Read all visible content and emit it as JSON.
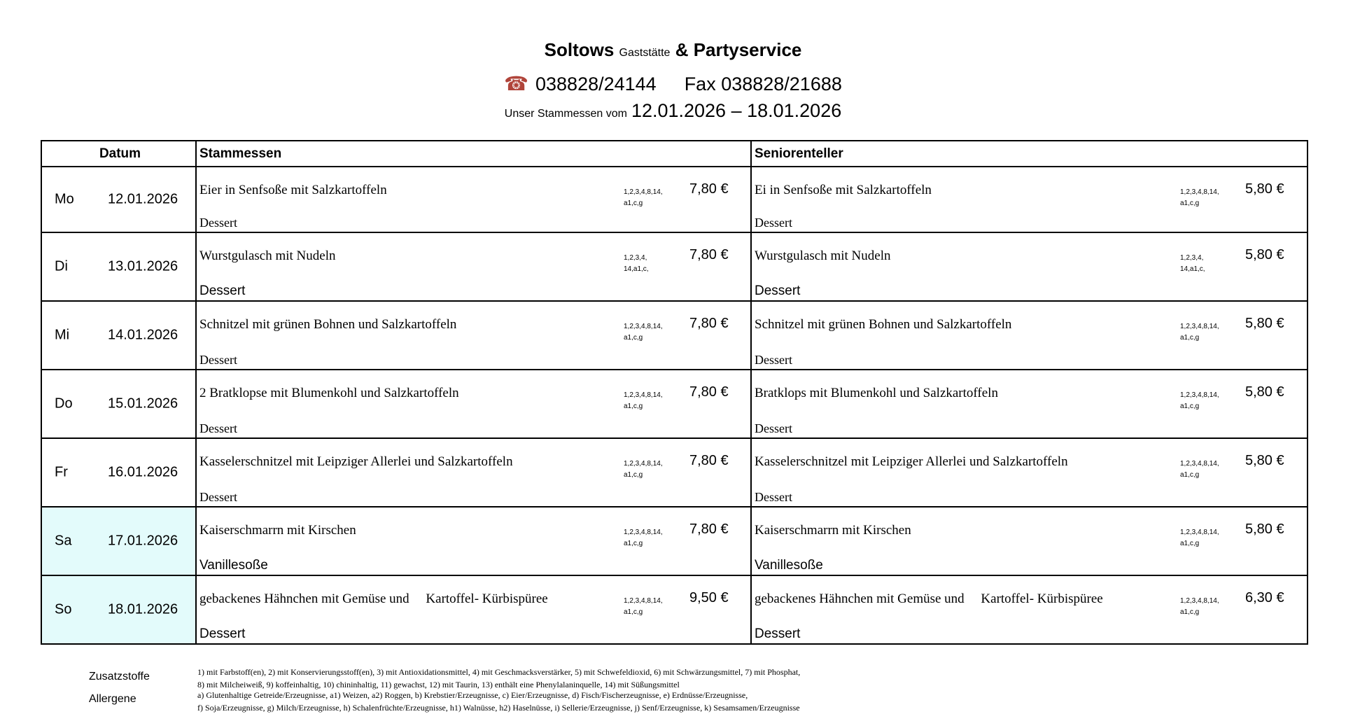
{
  "header": {
    "name": "Soltows",
    "name_small": "Gaststätte",
    "name_rest": "& Partyservice",
    "phone_icon": "telephone-icon",
    "phone": "038828/24144",
    "fax": "Fax 038828/21688",
    "week_label": "Unser Stammessen vom",
    "week_range": "12.01.2026 – 18.01.2026"
  },
  "table": {
    "headers": [
      "Datum",
      "Stammessen",
      "Seniorenteller"
    ],
    "rows": [
      {
        "day": "Mo",
        "date": "12.01.2026",
        "weekend": false,
        "main": {
          "dish": "Eier in Senfsoße mit Salzkartoffeln",
          "codes": [
            "1,2,3,4,8,14,",
            "a1,c,g"
          ],
          "price": "7,80 €",
          "extra": "Dessert",
          "extra_sans": false
        },
        "senior": {
          "dish": "Ei in Senfsoße mit Salzkartoffeln",
          "codes": [
            "1,2,3,4,8,14,",
            "a1,c,g"
          ],
          "price": "5,80 €",
          "extra": "Dessert",
          "extra_sans": false
        }
      },
      {
        "day": "Di",
        "date": "13.01.2026",
        "weekend": false,
        "main": {
          "dish": "Wurstgulasch mit Nudeln",
          "codes": [
            "1,2,3,4,",
            "14,a1,c,"
          ],
          "price": "7,80 €",
          "extra": "Dessert",
          "extra_sans": true
        },
        "senior": {
          "dish": "Wurstgulasch mit Nudeln",
          "codes": [
            "1,2,3,4,",
            "14,a1,c,"
          ],
          "price": "5,80 €",
          "extra": "Dessert",
          "extra_sans": true
        }
      },
      {
        "day": "Mi",
        "date": "14.01.2026",
        "weekend": false,
        "main": {
          "dish": "Schnitzel mit grünen Bohnen und Salzkartoffeln",
          "codes": [
            "1,2,3,4,8,14,",
            "a1,c,g"
          ],
          "price": "7,80 €",
          "extra": "Dessert",
          "extra_sans": false
        },
        "senior": {
          "dish": "Schnitzel mit grünen Bohnen und Salzkartoffeln",
          "codes": [
            "1,2,3,4,8,14,",
            "a1,c,g"
          ],
          "price": "5,80 €",
          "extra": "Dessert",
          "extra_sans": false
        }
      },
      {
        "day": "Do",
        "date": "15.01.2026",
        "weekend": false,
        "main": {
          "dish": "2 Bratklopse mit Blumenkohl und Salzkartoffeln",
          "codes": [
            "1,2,3,4,8,14,",
            "a1,c,g"
          ],
          "price": "7,80 €",
          "extra": "Dessert",
          "extra_sans": false
        },
        "senior": {
          "dish": "Bratklops mit Blumenkohl und Salzkartoffeln",
          "codes": [
            "1,2,3,4,8,14,",
            "a1,c,g"
          ],
          "price": "5,80 €",
          "extra": "Dessert",
          "extra_sans": false
        }
      },
      {
        "day": "Fr",
        "date": "16.01.2026",
        "weekend": false,
        "main": {
          "dish": "Kasselerschnitzel mit Leipziger Allerlei und Salzkartoffeln",
          "codes": [
            "1,2,3,4,8,14,",
            "a1,c,g"
          ],
          "price": "7,80 €",
          "extra": "Dessert",
          "extra_sans": false
        },
        "senior": {
          "dish": "Kasselerschnitzel mit Leipziger Allerlei und Salzkartoffeln",
          "codes": [
            "1,2,3,4,8,14,",
            "a1,c,g"
          ],
          "price": "5,80 €",
          "extra": "Dessert",
          "extra_sans": false
        }
      },
      {
        "day": "Sa",
        "date": "17.01.2026",
        "weekend": true,
        "main": {
          "dish": "Kaiserschmarrn mit Kirschen",
          "codes": [
            "1,2,3,4,8,14,",
            "a1,c,g"
          ],
          "price": "7,80 €",
          "extra": "Vanillesoße",
          "extra_sans": true
        },
        "senior": {
          "dish": "Kaiserschmarrn mit Kirschen",
          "codes": [
            "1,2,3,4,8,14,",
            "a1,c,g"
          ],
          "price": "5,80 €",
          "extra": "Vanillesoße",
          "extra_sans": true
        }
      },
      {
        "day": "So",
        "date": "18.01.2026",
        "weekend": true,
        "main": {
          "dish": "gebackenes Hähnchen mit Gemüse und     Kartoffel- Kürbispüree",
          "codes": [
            "1,2,3,4,8,14,",
            "a1,c,g"
          ],
          "price": "9,50 €",
          "extra": "Dessert",
          "extra_sans": true
        },
        "senior": {
          "dish": "gebackenes Hähnchen mit Gemüse und     Kartoffel- Kürbispüree",
          "codes": [
            "1,2,3,4,8,14,",
            "a1,c,g"
          ],
          "price": "6,30 €",
          "extra": "Dessert",
          "extra_sans": true
        }
      }
    ]
  },
  "colors": {
    "weekend_bg": "#e3fbfb",
    "phone_icon": "#b0443a"
  },
  "footer": {
    "additives_label": "Zusatzstoffe",
    "additives_lines": [
      "1) mit Farbstoff(en), 2) mit Konservierungsstoff(en), 3) mit Antioxidationsmittel, 4) mit Geschmacksverstärker, 5) mit Schwefeldioxid, 6) mit Schwärzungsmittel, 7) mit Phosphat,",
      "8) mit Milcheiweiß, 9) koffeinhaltig, 10) chininhaltig, 11) gewachst, 12) mit Taurin, 13) enthält eine Phenylalaninquelle, 14) mit Süßungsmittel"
    ],
    "allergens_label": "Allergene",
    "allergens_lines": [
      "a) Glutenhaltige Getreide/Erzeugnisse, a1) Weizen, a2) Roggen, b) Krebstier/Erzeugnisse, c) Eier/Erzeugnisse, d) Fisch/Fischerzeugnisse, e) Erdnüsse/Erzeugnisse,",
      "f) Soja/Erzeugnisse, g) Milch/Erzeugnisse, h) Schalenfrüchte/Erzeugnisse, h1) Walnüsse, h2) Haselnüsse, i) Sellerie/Erzeugnisse, j) Senf/Erzeugnisse, k) Sesamsamen/Erzeugnisse"
    ]
  }
}
